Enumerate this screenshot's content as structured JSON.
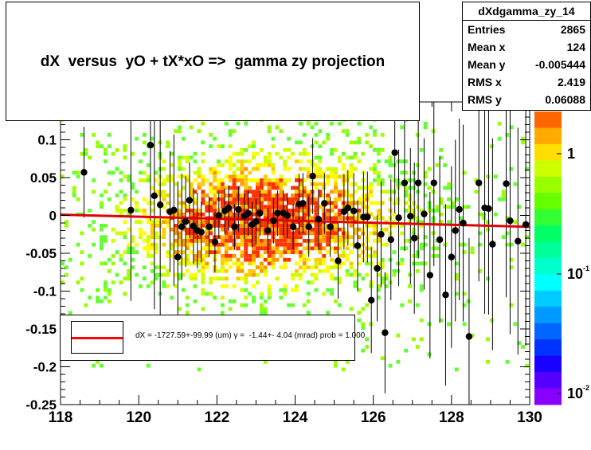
{
  "title": "dX  versus  yO + tX*xO =>  gamma zy projection",
  "stats": {
    "name": "dXdgamma_zy_14",
    "rows": [
      {
        "label": "Entries",
        "value": "2865"
      },
      {
        "label": "Mean x",
        "value": "124"
      },
      {
        "label": "Mean y",
        "value": "-0.005444"
      },
      {
        "label": "RMS x",
        "value": "2.419"
      },
      {
        "label": "RMS y",
        "value": "0.06088"
      }
    ]
  },
  "legend": {
    "text": "dX = -1727.59+-99.99 (um) γ =  -1.44+- 4.04 (mrad) prob = 1.000",
    "line_color": "#ff0000"
  },
  "chart_data": {
    "type": "heatmap",
    "xlim": [
      118,
      130
    ],
    "ylim": [
      -0.25,
      0.15
    ],
    "x_ticks": [
      "118",
      "120",
      "122",
      "124",
      "126",
      "128",
      "130"
    ],
    "y_ticks": [
      "0.1",
      "0.05",
      "0",
      "-0.05",
      "-0.1",
      "-0.15",
      "-0.2",
      "-0.25"
    ],
    "colorbar_ticks": [
      "1",
      "10^-1",
      "10^-2"
    ],
    "colorbar_scale": "log",
    "fit_line": {
      "color": "#e00000",
      "x": [
        118,
        130
      ],
      "y": [
        0.001,
        -0.015
      ]
    },
    "profile_points": [
      {
        "x": 118.6,
        "y": 0.057,
        "err": 0.06
      },
      {
        "x": 119.8,
        "y": 0.007,
        "err": 0.12
      },
      {
        "x": 120.3,
        "y": 0.093,
        "err": 0.1
      },
      {
        "x": 120.4,
        "y": 0.026,
        "err": 0.15
      },
      {
        "x": 120.55,
        "y": 0.014,
        "err": 0.2
      },
      {
        "x": 120.8,
        "y": 0.005,
        "err": 0.08
      },
      {
        "x": 120.9,
        "y": 0.007,
        "err": 0.1
      },
      {
        "x": 121.0,
        "y": -0.055,
        "err": 0.1
      },
      {
        "x": 121.1,
        "y": -0.015,
        "err": 0.07
      },
      {
        "x": 121.2,
        "y": -0.008,
        "err": 0.06
      },
      {
        "x": 121.3,
        "y": 0.02,
        "err": 0.05
      },
      {
        "x": 121.4,
        "y": -0.014,
        "err": 0.05
      },
      {
        "x": 121.5,
        "y": -0.02,
        "err": 0.05
      },
      {
        "x": 121.6,
        "y": -0.022,
        "err": 0.04
      },
      {
        "x": 121.8,
        "y": -0.015,
        "err": 0.04
      },
      {
        "x": 121.95,
        "y": -0.035,
        "err": 0.04
      },
      {
        "x": 122.05,
        "y": 0.0,
        "err": 0.03
      },
      {
        "x": 122.2,
        "y": 0.006,
        "err": 0.03
      },
      {
        "x": 122.3,
        "y": 0.01,
        "err": 0.03
      },
      {
        "x": 122.45,
        "y": -0.015,
        "err": 0.03
      },
      {
        "x": 122.55,
        "y": 0.008,
        "err": 0.03
      },
      {
        "x": 122.7,
        "y": -0.001,
        "err": 0.03
      },
      {
        "x": 122.8,
        "y": 0.003,
        "err": 0.03
      },
      {
        "x": 122.9,
        "y": -0.012,
        "err": 0.03
      },
      {
        "x": 123.0,
        "y": -0.008,
        "err": 0.03
      },
      {
        "x": 123.1,
        "y": 0.003,
        "err": 0.03
      },
      {
        "x": 123.3,
        "y": -0.02,
        "err": 0.03
      },
      {
        "x": 123.45,
        "y": -0.007,
        "err": 0.03
      },
      {
        "x": 123.55,
        "y": 0.003,
        "err": 0.03
      },
      {
        "x": 123.7,
        "y": 0.003,
        "err": 0.03
      },
      {
        "x": 123.8,
        "y": 0.0,
        "err": 0.03
      },
      {
        "x": 123.95,
        "y": -0.015,
        "err": 0.03
      },
      {
        "x": 124.1,
        "y": 0.015,
        "err": 0.04
      },
      {
        "x": 124.2,
        "y": 0.016,
        "err": 0.04
      },
      {
        "x": 124.35,
        "y": -0.015,
        "err": 0.04
      },
      {
        "x": 124.45,
        "y": 0.052,
        "err": 0.05
      },
      {
        "x": 124.6,
        "y": -0.005,
        "err": 0.04
      },
      {
        "x": 124.75,
        "y": 0.016,
        "err": 0.04
      },
      {
        "x": 124.9,
        "y": -0.015,
        "err": 0.04
      },
      {
        "x": 125.1,
        "y": -0.06,
        "err": 0.05
      },
      {
        "x": 125.25,
        "y": 0.005,
        "err": 0.05
      },
      {
        "x": 125.35,
        "y": 0.01,
        "err": 0.05
      },
      {
        "x": 125.5,
        "y": 0.006,
        "err": 0.05
      },
      {
        "x": 125.6,
        "y": -0.04,
        "err": 0.06
      },
      {
        "x": 125.75,
        "y": -0.002,
        "err": 0.06
      },
      {
        "x": 125.85,
        "y": -0.002,
        "err": 0.06
      },
      {
        "x": 125.95,
        "y": -0.112,
        "err": 0.07
      },
      {
        "x": 126.1,
        "y": -0.07,
        "err": 0.07
      },
      {
        "x": 126.2,
        "y": -0.025,
        "err": 0.07
      },
      {
        "x": 126.3,
        "y": -0.155,
        "err": 0.08
      },
      {
        "x": 126.45,
        "y": -0.032,
        "err": 0.08
      },
      {
        "x": 126.55,
        "y": 0.083,
        "err": 0.08
      },
      {
        "x": 126.65,
        "y": -0.003,
        "err": 0.09
      },
      {
        "x": 126.8,
        "y": 0.043,
        "err": 0.09
      },
      {
        "x": 126.95,
        "y": -0.001,
        "err": 0.09
      },
      {
        "x": 127.05,
        "y": -0.03,
        "err": 0.1
      },
      {
        "x": 127.15,
        "y": 0.043,
        "err": 0.1
      },
      {
        "x": 127.3,
        "y": 0.002,
        "err": 0.1
      },
      {
        "x": 127.45,
        "y": -0.079,
        "err": 0.11
      },
      {
        "x": 127.55,
        "y": 0.043,
        "err": 0.11
      },
      {
        "x": 127.7,
        "y": -0.032,
        "err": 0.11
      },
      {
        "x": 127.85,
        "y": -0.105,
        "err": 0.12
      },
      {
        "x": 128.0,
        "y": -0.055,
        "err": 0.12
      },
      {
        "x": 128.1,
        "y": -0.02,
        "err": 0.12
      },
      {
        "x": 128.2,
        "y": 0.008,
        "err": 0.12
      },
      {
        "x": 128.3,
        "y": -0.01,
        "err": 0.13
      },
      {
        "x": 128.45,
        "y": -0.16,
        "err": 0.13
      },
      {
        "x": 128.7,
        "y": 0.043,
        "err": 0.13
      },
      {
        "x": 128.85,
        "y": 0.01,
        "err": 0.14
      },
      {
        "x": 128.95,
        "y": 0.009,
        "err": 0.14
      },
      {
        "x": 129.05,
        "y": -0.038,
        "err": 0.14
      },
      {
        "x": 129.4,
        "y": 0.042,
        "err": 0.15
      },
      {
        "x": 129.5,
        "y": -0.007,
        "err": 0.15
      },
      {
        "x": 129.7,
        "y": -0.034,
        "err": 0.15
      },
      {
        "x": 129.9,
        "y": -0.012,
        "err": 0.16
      }
    ]
  }
}
